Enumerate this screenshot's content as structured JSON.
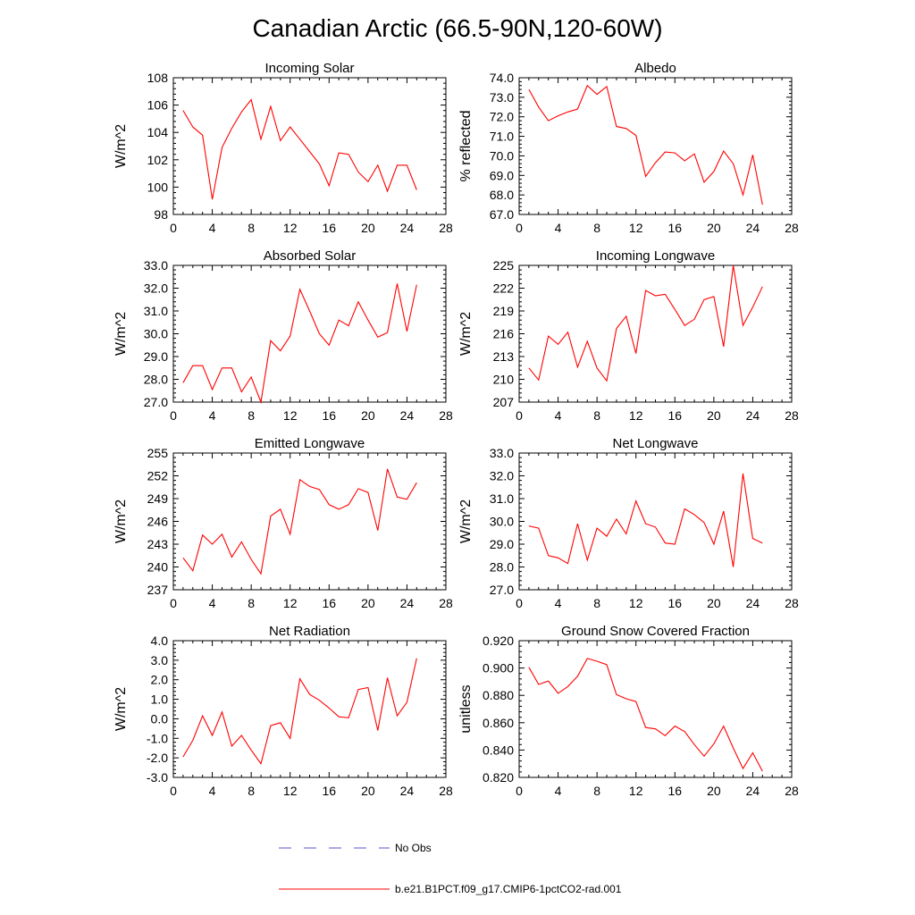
{
  "figure": {
    "title": "Canadian Arctic (66.5-90N,120-60W)"
  },
  "legend": {
    "position": "bottom-center",
    "items": [
      {
        "label": "No Obs",
        "color": "#5555cc",
        "style": "dashed"
      },
      {
        "label": "b.e21.B1PCT.f09_g17.CMIP6-1pctCO2-rad.001",
        "color": "#ff0000",
        "style": "solid"
      }
    ]
  },
  "chart_data": [
    {
      "type": "line",
      "title": "Incoming Solar",
      "ylabel": "W/m^2",
      "xlabel": "",
      "xlim": [
        0,
        28
      ],
      "ylim": [
        98,
        108
      ],
      "xticks": [
        "0",
        "4",
        "8",
        "12",
        "16",
        "20",
        "24",
        "28"
      ],
      "yticks": [
        "98",
        "100",
        "102",
        "104",
        "106",
        "108"
      ],
      "x": [
        1,
        2,
        3,
        4,
        5,
        6,
        7,
        8,
        9,
        10,
        11,
        12,
        13,
        14,
        15,
        16,
        17,
        18,
        19,
        20,
        21,
        22,
        23,
        24,
        25
      ],
      "series": [
        {
          "name": "b.e21.B1PCT.f09_g17.CMIP6-1pctCO2-rad.001",
          "color": "#ff0000",
          "values": [
            105.6,
            104.4,
            103.8,
            99.1,
            102.9,
            104.3,
            105.5,
            106.4,
            103.5,
            105.9,
            103.4,
            104.4,
            103.5,
            102.6,
            101.7,
            100.1,
            102.5,
            102.4,
            101.1,
            100.4,
            101.6,
            99.7,
            101.6,
            101.6,
            99.8
          ]
        }
      ]
    },
    {
      "type": "line",
      "title": "Albedo",
      "ylabel": "% reflected",
      "xlabel": "",
      "xlim": [
        0,
        28
      ],
      "ylim": [
        67.0,
        74.0
      ],
      "xticks": [
        "0",
        "4",
        "8",
        "12",
        "16",
        "20",
        "24",
        "28"
      ],
      "yticks": [
        "67.0",
        "68.0",
        "69.0",
        "70.0",
        "71.0",
        "72.0",
        "73.0",
        "74.0"
      ],
      "x": [
        1,
        2,
        3,
        4,
        5,
        6,
        7,
        8,
        9,
        10,
        11,
        12,
        13,
        14,
        15,
        16,
        17,
        18,
        19,
        20,
        21,
        22,
        23,
        24,
        25
      ],
      "series": [
        {
          "name": "b.e21.B1PCT.f09_g17.CMIP6-1pctCO2-rad.001",
          "color": "#ff0000",
          "values": [
            73.4,
            72.5,
            71.8,
            72.05,
            72.25,
            72.4,
            73.6,
            73.15,
            73.55,
            71.5,
            71.4,
            71.05,
            68.95,
            69.65,
            70.2,
            70.15,
            69.75,
            70.1,
            68.65,
            69.2,
            70.25,
            69.6,
            68.0,
            70.05,
            67.5
          ]
        }
      ]
    },
    {
      "type": "line",
      "title": "Absorbed Solar",
      "ylabel": "W/m^2",
      "xlabel": "",
      "xlim": [
        0,
        28
      ],
      "ylim": [
        27.0,
        33.0
      ],
      "xticks": [
        "0",
        "4",
        "8",
        "12",
        "16",
        "20",
        "24",
        "28"
      ],
      "yticks": [
        "27.0",
        "28.0",
        "29.0",
        "30.0",
        "31.0",
        "32.0",
        "33.0"
      ],
      "x": [
        1,
        2,
        3,
        4,
        5,
        6,
        7,
        8,
        9,
        10,
        11,
        12,
        13,
        14,
        15,
        16,
        17,
        18,
        19,
        20,
        21,
        22,
        23,
        24,
        25
      ],
      "series": [
        {
          "name": "b.e21.B1PCT.f09_g17.CMIP6-1pctCO2-rad.001",
          "color": "#ff0000",
          "values": [
            27.85,
            28.6,
            28.6,
            27.55,
            28.5,
            28.5,
            27.45,
            28.1,
            27.0,
            29.7,
            29.25,
            29.9,
            31.95,
            31.0,
            30.0,
            29.5,
            30.6,
            30.35,
            31.4,
            30.6,
            29.85,
            30.05,
            32.2,
            30.1,
            32.15
          ]
        }
      ]
    },
    {
      "type": "line",
      "title": "Incoming Longwave",
      "ylabel": "W/m^2",
      "xlabel": "",
      "xlim": [
        0,
        28
      ],
      "ylim": [
        207,
        225
      ],
      "xticks": [
        "0",
        "4",
        "8",
        "12",
        "16",
        "20",
        "24",
        "28"
      ],
      "yticks": [
        "207",
        "210",
        "213",
        "216",
        "219",
        "222",
        "225"
      ],
      "x": [
        1,
        2,
        3,
        4,
        5,
        6,
        7,
        8,
        9,
        10,
        11,
        12,
        13,
        14,
        15,
        16,
        17,
        18,
        19,
        20,
        21,
        22,
        23,
        24,
        25
      ],
      "series": [
        {
          "name": "b.e21.B1PCT.f09_g17.CMIP6-1pctCO2-rad.001",
          "color": "#ff0000",
          "values": [
            211.5,
            209.9,
            215.7,
            214.6,
            216.2,
            211.6,
            215.0,
            211.5,
            209.8,
            216.7,
            218.3,
            213.4,
            221.7,
            221.0,
            221.2,
            219.2,
            217.1,
            217.9,
            220.5,
            220.9,
            214.3,
            225.0,
            217.1,
            219.5,
            222.2
          ]
        }
      ]
    },
    {
      "type": "line",
      "title": "Emitted Longwave",
      "ylabel": "W/m^2",
      "xlabel": "",
      "xlim": [
        0,
        28
      ],
      "ylim": [
        237,
        255
      ],
      "xticks": [
        "0",
        "4",
        "8",
        "12",
        "16",
        "20",
        "24",
        "28"
      ],
      "yticks": [
        "237",
        "240",
        "243",
        "246",
        "249",
        "252",
        "255"
      ],
      "x": [
        1,
        2,
        3,
        4,
        5,
        6,
        7,
        8,
        9,
        10,
        11,
        12,
        13,
        14,
        15,
        16,
        17,
        18,
        19,
        20,
        21,
        22,
        23,
        24,
        25
      ],
      "series": [
        {
          "name": "b.e21.B1PCT.f09_g17.CMIP6-1pctCO2-rad.001",
          "color": "#ff0000",
          "values": [
            241.2,
            239.5,
            244.2,
            243.0,
            244.3,
            241.3,
            243.3,
            241.0,
            239.1,
            246.7,
            247.6,
            244.3,
            251.5,
            250.6,
            250.2,
            248.2,
            247.6,
            248.2,
            250.3,
            249.8,
            244.8,
            252.9,
            249.2,
            248.9,
            251.1
          ]
        }
      ]
    },
    {
      "type": "line",
      "title": "Net Longwave",
      "ylabel": "W/m^2",
      "xlabel": "",
      "xlim": [
        0,
        28
      ],
      "ylim": [
        27.0,
        33.0
      ],
      "xticks": [
        "0",
        "4",
        "8",
        "12",
        "16",
        "20",
        "24",
        "28"
      ],
      "yticks": [
        "27.0",
        "28.0",
        "29.0",
        "30.0",
        "31.0",
        "32.0",
        "33.0"
      ],
      "x": [
        1,
        2,
        3,
        4,
        5,
        6,
        7,
        8,
        9,
        10,
        11,
        12,
        13,
        14,
        15,
        16,
        17,
        18,
        19,
        20,
        21,
        22,
        23,
        24,
        25
      ],
      "series": [
        {
          "name": "b.e21.B1PCT.f09_g17.CMIP6-1pctCO2-rad.001",
          "color": "#ff0000",
          "values": [
            29.8,
            29.7,
            28.5,
            28.4,
            28.15,
            29.9,
            28.3,
            29.7,
            29.35,
            30.1,
            29.45,
            30.9,
            29.9,
            29.75,
            29.05,
            29.0,
            30.55,
            30.3,
            29.95,
            29.0,
            30.45,
            28.0,
            32.1,
            29.25,
            29.05
          ]
        }
      ]
    },
    {
      "type": "line",
      "title": "Net Radiation",
      "ylabel": "W/m^2",
      "xlabel": "",
      "xlim": [
        0,
        28
      ],
      "ylim": [
        -3.0,
        4.0
      ],
      "xticks": [
        "0",
        "4",
        "8",
        "12",
        "16",
        "20",
        "24",
        "28"
      ],
      "yticks": [
        "-3.0",
        "-2.0",
        "-1.0",
        "0.0",
        "1.0",
        "2.0",
        "3.0",
        "4.0"
      ],
      "x": [
        1,
        2,
        3,
        4,
        5,
        6,
        7,
        8,
        9,
        10,
        11,
        12,
        13,
        14,
        15,
        16,
        17,
        18,
        19,
        20,
        21,
        22,
        23,
        24,
        25
      ],
      "series": [
        {
          "name": "b.e21.B1PCT.f09_g17.CMIP6-1pctCO2-rad.001",
          "color": "#ff0000",
          "values": [
            -1.95,
            -1.1,
            0.15,
            -0.85,
            0.35,
            -1.4,
            -0.85,
            -1.6,
            -2.3,
            -0.35,
            -0.2,
            -1.0,
            2.05,
            1.25,
            0.95,
            0.55,
            0.1,
            0.05,
            1.5,
            1.6,
            -0.6,
            2.1,
            0.15,
            0.85,
            3.1
          ]
        }
      ]
    },
    {
      "type": "line",
      "title": "Ground Snow Covered Fraction",
      "ylabel": "unitless",
      "xlabel": "",
      "xlim": [
        0,
        28
      ],
      "ylim": [
        0.82,
        0.92
      ],
      "xticks": [
        "0",
        "4",
        "8",
        "12",
        "16",
        "20",
        "24",
        "28"
      ],
      "yticks": [
        "0.820",
        "0.840",
        "0.860",
        "0.880",
        "0.900",
        "0.920"
      ],
      "x": [
        1,
        2,
        3,
        4,
        5,
        6,
        7,
        8,
        9,
        10,
        11,
        12,
        13,
        14,
        15,
        16,
        17,
        18,
        19,
        20,
        21,
        22,
        23,
        24,
        25
      ],
      "series": [
        {
          "name": "b.e21.B1PCT.f09_g17.CMIP6-1pctCO2-rad.001",
          "color": "#ff0000",
          "values": [
            0.9005,
            0.888,
            0.8905,
            0.8815,
            0.8865,
            0.894,
            0.907,
            0.905,
            0.9025,
            0.8805,
            0.8775,
            0.8755,
            0.8565,
            0.8555,
            0.8505,
            0.8575,
            0.8535,
            0.844,
            0.8355,
            0.8445,
            0.8575,
            0.8415,
            0.8265,
            0.838,
            0.8245
          ]
        }
      ]
    }
  ]
}
